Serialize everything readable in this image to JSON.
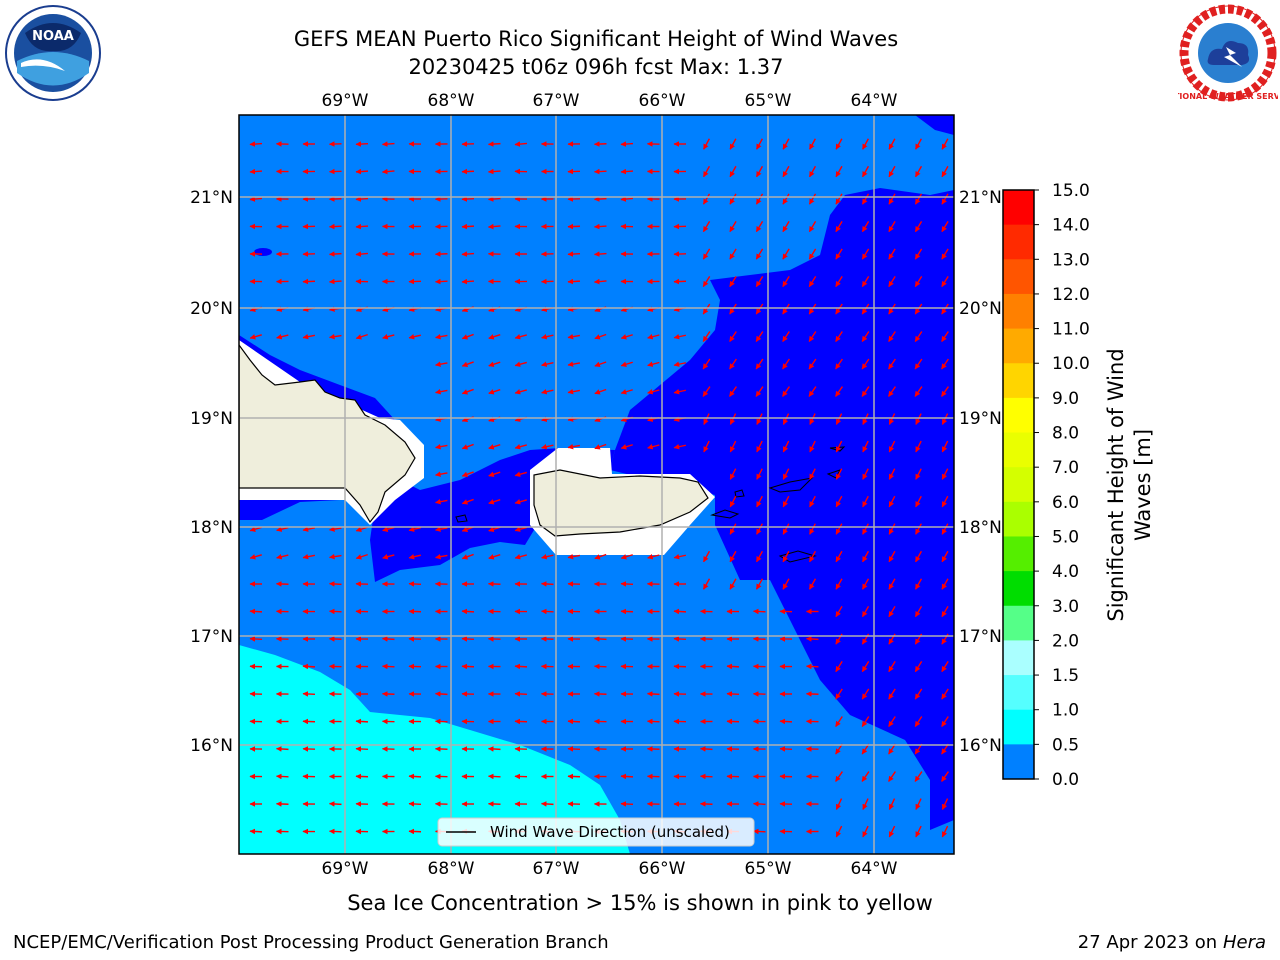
{
  "header": {
    "title_line1": "GEFS MEAN Puerto Rico Significant Height of Wind Waves",
    "title_line2": "20230425 t06z 096h fcst   Max: 1.37"
  },
  "logos": {
    "left_name": "NOAA",
    "right_name": "NATIONAL WEATHER SERVICE"
  },
  "map": {
    "lon_labels": [
      "69°W",
      "68°W",
      "67°W",
      "66°W",
      "65°W",
      "64°W"
    ],
    "lat_labels": [
      "21°N",
      "20°N",
      "19°N",
      "18°N",
      "17°N",
      "16°N"
    ],
    "legend_text": "Wind Wave Direction (unscaled)",
    "colors": {
      "band_0_0.5": "#0000ff",
      "band_0.5_1.0": "#0080ff",
      "band_1.0_1.5": "#00ffff",
      "land": "#efeedc",
      "arrow": "#ff0000",
      "grid": "#b0b0b0"
    }
  },
  "colorbar": {
    "label_line1": "Significant Height of Wind",
    "label_line2": "Waves [m]",
    "ticks": [
      "15.0",
      "14.0",
      "13.0",
      "12.0",
      "11.0",
      "10.0",
      "9.0",
      "8.0",
      "7.0",
      "6.0",
      "5.0",
      "4.0",
      "3.0",
      "2.0",
      "1.5",
      "1.0",
      "0.5",
      "0.0"
    ],
    "colors": [
      "#ff0000",
      "#ff2a00",
      "#ff5500",
      "#ff8000",
      "#ffaa00",
      "#ffd500",
      "#ffff00",
      "#eaff00",
      "#d4ff00",
      "#aaff00",
      "#55ee00",
      "#00dd00",
      "#55ff88",
      "#aaffff",
      "#55ffff",
      "#00ffff",
      "#0080ff",
      "#0000ff"
    ]
  },
  "footer": {
    "sea_ice_note": "Sea Ice Concentration > 15% is shown in pink to yellow",
    "branch": "NCEP/EMC/Verification Post Processing Product Generation Branch",
    "date": "27 Apr 2023 on",
    "machine": "Hera"
  }
}
